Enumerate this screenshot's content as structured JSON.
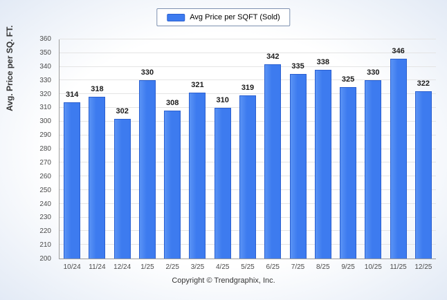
{
  "chart_data": {
    "type": "bar",
    "title": "",
    "legend_label": "Avg Price per SQFT (Sold)",
    "legend_position": "top",
    "xlabel": "",
    "ylabel": "Avg. Price per SQ. FT.",
    "ylim": [
      200,
      360
    ],
    "ytick_step": 10,
    "grid": true,
    "categories": [
      "10/24",
      "11/24",
      "12/24",
      "1/25",
      "2/25",
      "3/25",
      "4/25",
      "5/25",
      "6/25",
      "7/25",
      "8/25",
      "9/25",
      "10/25",
      "11/25",
      "12/25"
    ],
    "values": [
      314,
      318,
      302,
      330,
      308,
      321,
      310,
      319,
      342,
      335,
      338,
      325,
      330,
      346,
      322
    ],
    "bar_color": "#3d7bef",
    "bar_border_color": "#2a5fd0"
  },
  "footer": {
    "copyright": "Copyright © Trendgraphix, Inc."
  }
}
